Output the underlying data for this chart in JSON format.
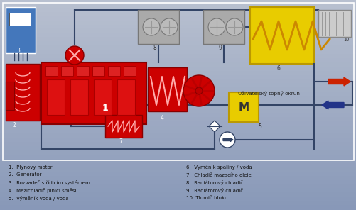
{
  "bg_top": "#b8c0d0",
  "bg_bottom": "#8898b8",
  "red": "#cc0000",
  "dark_red": "#880000",
  "yellow": "#e8cc00",
  "blue_box": "#4477bb",
  "gray_box": "#aaaaaa",
  "light_gray": "#cccccc",
  "white": "#ffffff",
  "arrow_red": "#cc2200",
  "arrow_blue": "#223388",
  "line_color": "#334466",
  "label_user": "Uživatelský topný okruh",
  "legend_left": [
    "1.  Plynový motor",
    "2.  Generátor",
    "3.  Rozvadeč s řídicím systémem",
    "4.  Mezichladič plnicí směsi",
    "5.  Výměník voda / voda"
  ],
  "legend_right": [
    "6.  Výměník spaliny / voda",
    "7.  Chladič mazacího oleje",
    "8.  Radiátorový chladič",
    "9.  Radiátorový chladič",
    "10. Tlumič hluku"
  ]
}
